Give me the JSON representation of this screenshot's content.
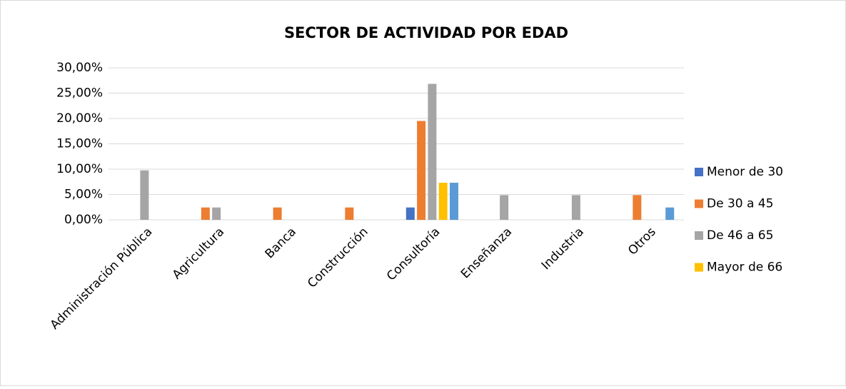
{
  "chart_data": {
    "type": "bar",
    "title": "SECTOR DE ACTIVIDAD POR EDAD",
    "categories": [
      "Administración Pública",
      "Agricultura",
      "Banca",
      "Construcción",
      "Consultoría",
      "Enseñanza",
      "Industria",
      "Otros"
    ],
    "series": [
      {
        "name": "Menor de 30",
        "color": "#4472c4",
        "values": [
          0,
          0,
          0,
          0,
          2.44,
          0,
          0,
          0
        ]
      },
      {
        "name": "De 30 a 45",
        "color": "#ed7d31",
        "values": [
          0,
          2.44,
          2.44,
          2.44,
          19.51,
          0,
          0,
          4.88
        ]
      },
      {
        "name": "De 46 a 65",
        "color": "#a5a5a5",
        "values": [
          9.76,
          2.44,
          0,
          0,
          26.83,
          4.88,
          4.88,
          0
        ]
      },
      {
        "name": "Mayor de 66",
        "color": "#ffc000",
        "values": [
          0,
          0,
          0,
          0,
          7.32,
          0,
          0,
          0
        ]
      },
      {
        "name": null,
        "color": "#5b9bd5",
        "values": [
          0,
          0,
          0,
          0,
          7.32,
          0,
          0,
          2.44
        ]
      }
    ],
    "ylim": [
      0,
      30
    ],
    "yticks": [
      {
        "value": 0,
        "label": "0,00%"
      },
      {
        "value": 5,
        "label": "5,00%"
      },
      {
        "value": 10,
        "label": "10,00%"
      },
      {
        "value": 15,
        "label": "15,00%"
      },
      {
        "value": 20,
        "label": "20,00%"
      },
      {
        "value": 25,
        "label": "25,00%"
      },
      {
        "value": 30,
        "label": "30,00%"
      }
    ],
    "grid": true,
    "legend": "right"
  }
}
